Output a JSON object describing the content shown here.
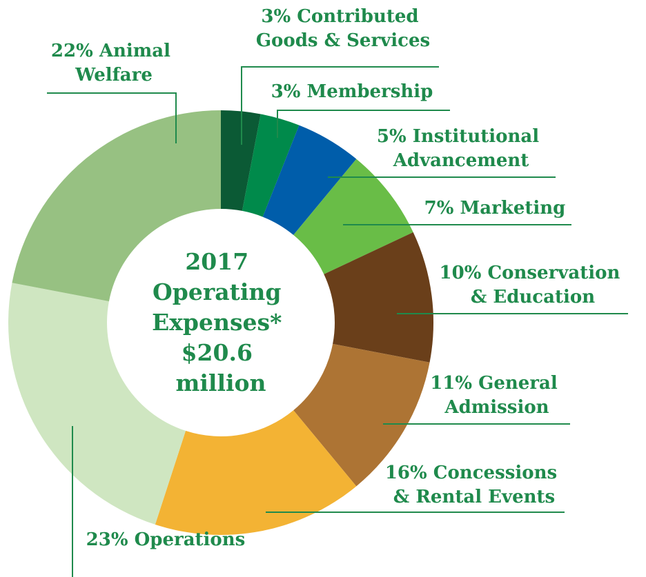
{
  "chart_data": {
    "type": "donut",
    "title": "2017 Operating Expenses* $20.6 million",
    "categories": [
      "Contributed Goods & Services",
      "Membership",
      "Institutional Advancement",
      "Marketing",
      "Conservation & Education",
      "General Admission",
      "Concessions & Rental Events",
      "Operations",
      "Animal Welfare"
    ],
    "values": [
      3,
      3,
      5,
      7,
      10,
      11,
      16,
      23,
      22
    ],
    "value_labels": [
      "3%",
      "3%",
      "5%",
      "7%",
      "10%",
      "11%",
      "16%",
      "23%",
      "22%"
    ],
    "colors": [
      "#0b5a35",
      "#008a4b",
      "#005daa",
      "#69bd47",
      "#6a3f1a",
      "#ad7434",
      "#f3b334",
      "#cfe6c1",
      "#97c182"
    ]
  }
}
